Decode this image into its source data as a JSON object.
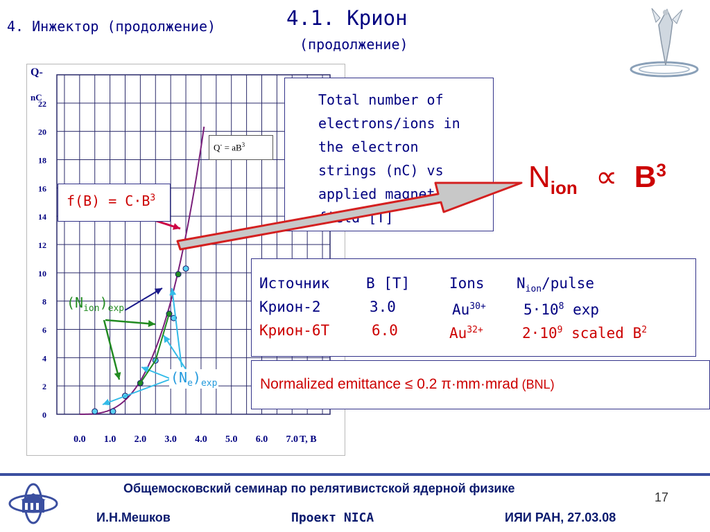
{
  "header": {
    "section": "4. Инжектор (продолжение)",
    "title": "4.1. Крион",
    "subtitle": "(продолжение)"
  },
  "chart_data": {
    "type": "scatter",
    "xlabel": "T,   B",
    "ylabel": "Q-",
    "yunit": "nC",
    "x_ticks": [
      "0.0",
      "1.0",
      "2.0",
      "3.0",
      "4.0",
      "5.0",
      "6.0",
      "7.0"
    ],
    "y_ticks": [
      "0",
      "2",
      "4",
      "6",
      "8",
      "10",
      "12",
      "14",
      "16",
      "18",
      "20",
      "22"
    ],
    "xlim": [
      -0.75,
      8.25
    ],
    "ylim": [
      0,
      24
    ],
    "grid": true,
    "legend_box": {
      "prefix": "Q",
      "sup1": "-",
      "mid": " = aB",
      "sup2": "3"
    },
    "series": [
      {
        "name": "Ne exp",
        "color": "#5bd0f0",
        "points": [
          [
            0.5,
            0.2
          ],
          [
            1.1,
            0.2
          ],
          [
            1.5,
            1.3
          ],
          [
            2.5,
            3.8
          ],
          [
            3.1,
            6.8
          ],
          [
            3.5,
            10.3
          ]
        ]
      },
      {
        "name": "Nion exp",
        "color": "#228b22",
        "points": [
          [
            2.0,
            2.2
          ],
          [
            2.95,
            7.1
          ],
          [
            3.25,
            9.9
          ]
        ]
      }
    ],
    "fit_curve": {
      "color": "#7a1f7a",
      "a": 0.295,
      "x_range": [
        0,
        4.1
      ]
    }
  },
  "annotations": {
    "fB": {
      "pre": "f(B) = C",
      "dot": "·",
      "base": "B",
      "sup": "3"
    },
    "nion": {
      "pre": "(N",
      "sub": "ion",
      "post": ")",
      "sub2": "exp"
    },
    "ne": {
      "pre": "(N",
      "sub": "e",
      "post": ")",
      "sub2": "exp"
    }
  },
  "description_box": {
    "lines": [
      "Total number of",
      "electrons/ions in",
      "the electron",
      "strings (nC) vs",
      "applied magnetic",
      "field [T]"
    ]
  },
  "formula": {
    "n": "N",
    "sub": "ion",
    "prop": "∝",
    "b": "B",
    "sup": "3"
  },
  "sources_table": {
    "header": {
      "c1": "Источник",
      "c2": "B [T]",
      "c3": "Ions",
      "c4_n": "N",
      "c4_sub": "ion",
      "c4_rest": "/pulse"
    },
    "rows": [
      {
        "c1": "Крион-2",
        "c2": "3.0",
        "c3": "Au",
        "c3_sup": "30+",
        "c4_a": "5",
        "c4_dot": "·",
        "c4_b": "10",
        "c4_sup": "8",
        "c4_rest": " exp",
        "c4_sup2": "",
        "color": "#000080"
      },
      {
        "c1": "Крион-6Т",
        "c2": "6.0",
        "c3": "Au",
        "c3_sup": "32+",
        "c4_a": "2",
        "c4_dot": "·",
        "c4_b": "10",
        "c4_sup": "9",
        "c4_rest": " scaled B",
        "c4_sup2": "2",
        "color": "#cc0000"
      }
    ]
  },
  "emittance": {
    "text": "Normalized emittance ≤ 0.2 ",
    "pi": "π",
    "dot": "·",
    "mm": "mm",
    "mrad": "mrad",
    "bnl": " (BNL)"
  },
  "footer": {
    "seminar": "Общемосковский семинар по релятивистской ядерной физике",
    "author": "И.Н.Мешков",
    "project": "Проект NICA",
    "org": "ИЯИ РАН, 27.03.08",
    "page": "17"
  },
  "colors": {
    "heading": "#000080",
    "accent_red": "#cc0000",
    "arrow_green": "#228b22",
    "arrow_cyan": "#33bbe8",
    "footer_line": "#3b4fa0"
  }
}
